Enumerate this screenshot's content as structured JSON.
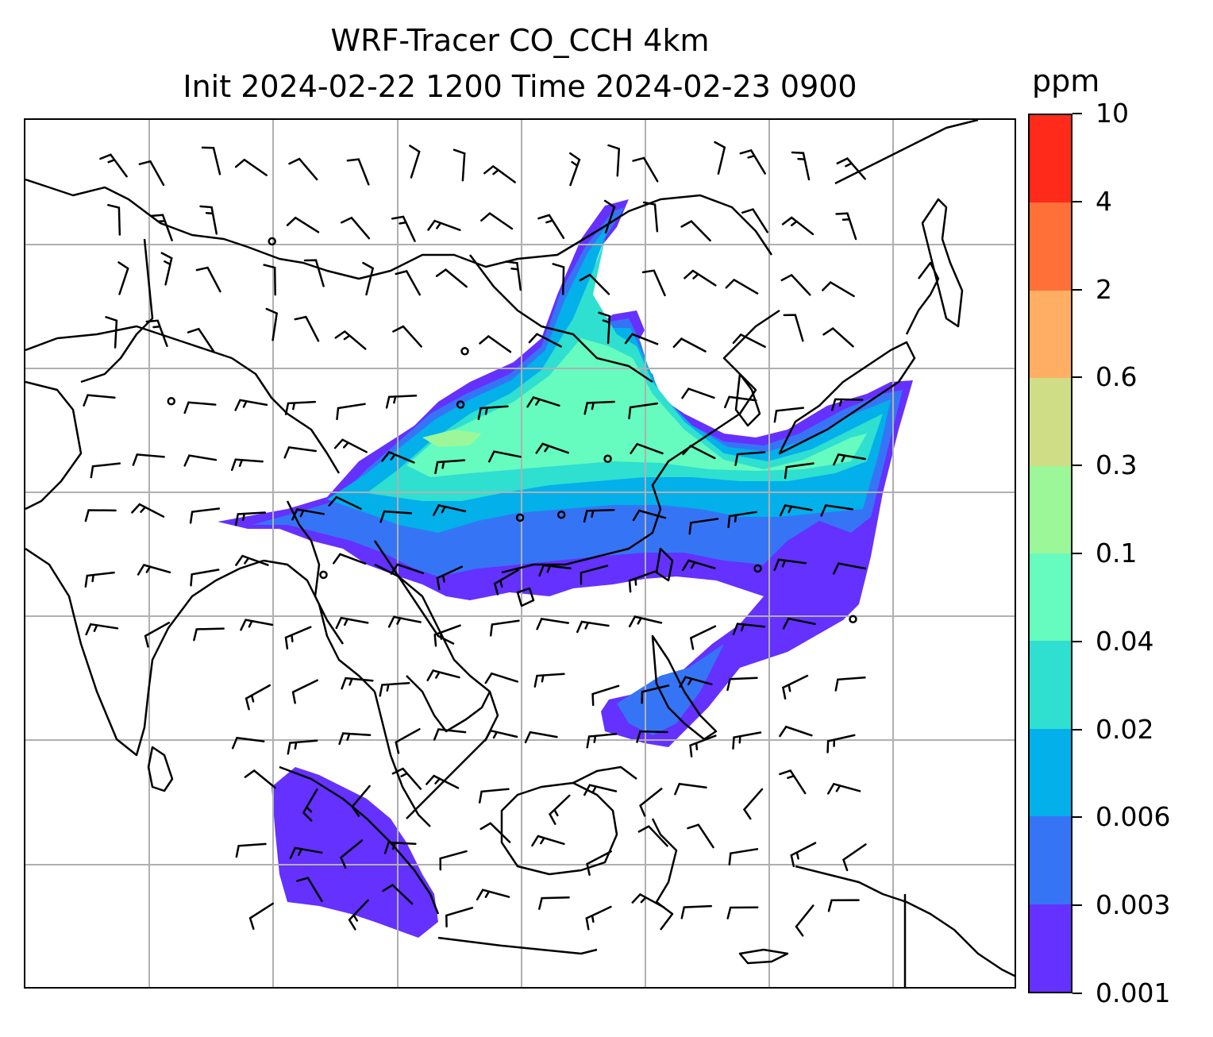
{
  "title": {
    "line1": "WRF-Tracer CO_CCH 4km",
    "line2": "Init 2024-02-22 1200 Time 2024-02-23 0900"
  },
  "colorbar": {
    "unit": "ppm",
    "levels": [
      "0.001",
      "0.003",
      "0.006",
      "0.02",
      "0.04",
      "0.1",
      "0.3",
      "0.6",
      "2",
      "4",
      "10"
    ],
    "colors": [
      "#6431ff",
      "#3575f5",
      "#03b0ea",
      "#2fdfd0",
      "#66fbbf",
      "#9cf799",
      "#cfde86",
      "#ffae64",
      "#ff7039",
      "#ff2a19"
    ]
  },
  "map": {
    "plume_colors": {
      "lowest": "#6431ff",
      "low": "#3575f5",
      "mid": "#03b0ea",
      "upper_mid": "#2fdfd0",
      "high": "#66fbbf",
      "core": "#9cf799"
    },
    "gridline_color": "#b0b0b0",
    "coastline_color": "#000000",
    "wind_barb_color": "#000000"
  }
}
